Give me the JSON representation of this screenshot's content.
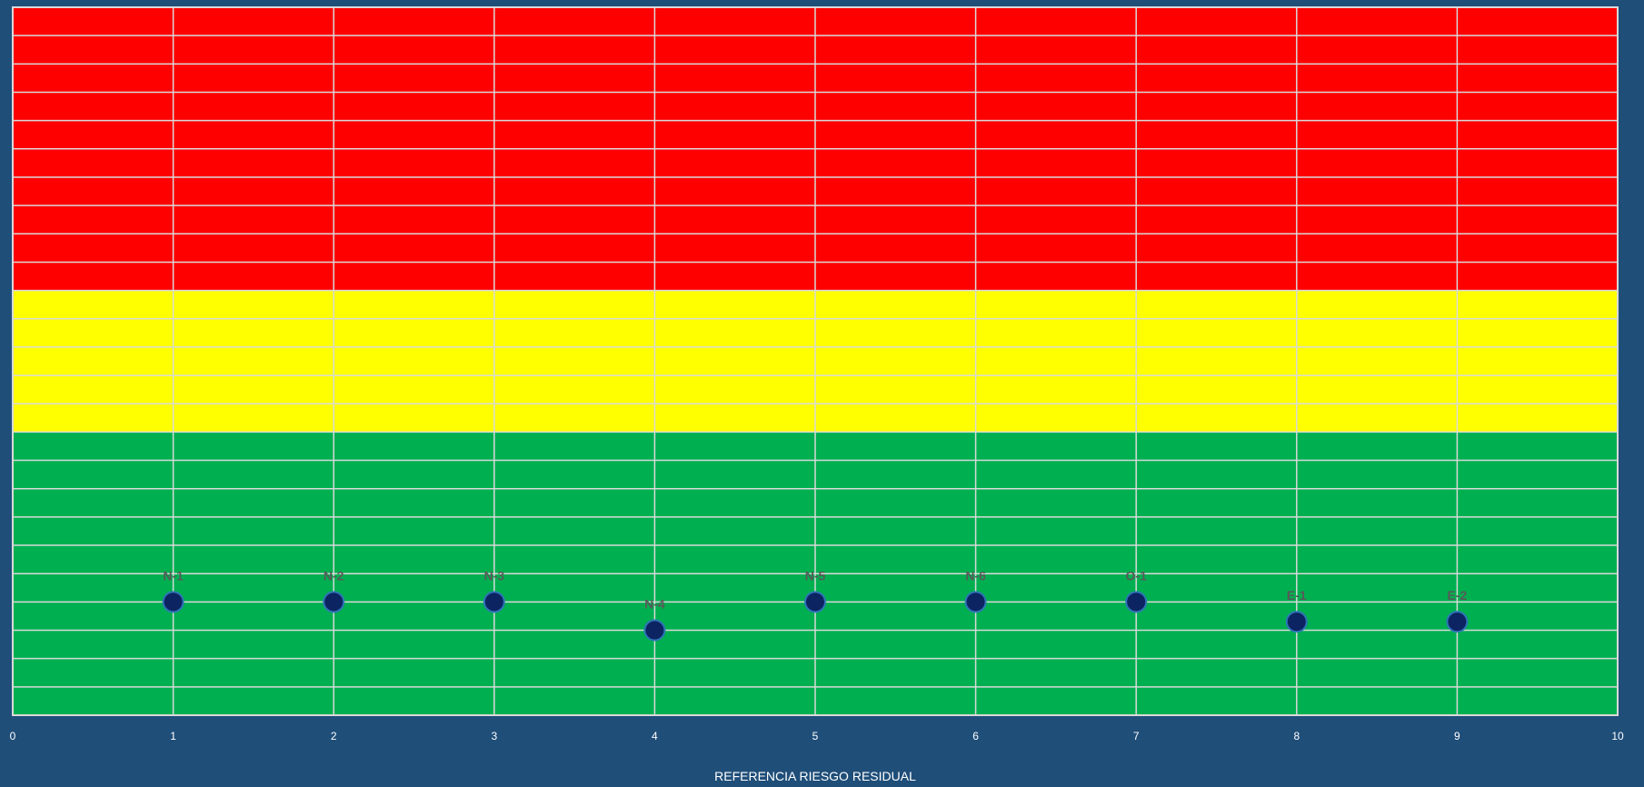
{
  "chart_data": {
    "type": "scatter",
    "title": "",
    "xlabel": "REFERENCIA RIESGO RESIDUAL",
    "ylabel": "",
    "xlim": [
      0,
      10
    ],
    "ylim": [
      0,
      25
    ],
    "x_ticks": [
      "0",
      "1",
      "2",
      "3",
      "4",
      "5",
      "6",
      "7",
      "8",
      "9",
      "10"
    ],
    "y_grid_step": 1,
    "grid": true,
    "bands": [
      {
        "name": "green",
        "from": 0,
        "to": 10,
        "color": "#00b050"
      },
      {
        "name": "yellow",
        "from": 10,
        "to": 15,
        "color": "#ffff00"
      },
      {
        "name": "red",
        "from": 15,
        "to": 25,
        "color": "#ff0000"
      }
    ],
    "marker_color": "#0c2461",
    "points": [
      {
        "label": "N-1",
        "x": 1,
        "y": 4
      },
      {
        "label": "N-2",
        "x": 2,
        "y": 4
      },
      {
        "label": "N-3",
        "x": 3,
        "y": 4
      },
      {
        "label": "N-4",
        "x": 4,
        "y": 3
      },
      {
        "label": "N-5",
        "x": 5,
        "y": 4
      },
      {
        "label": "N-6",
        "x": 6,
        "y": 4
      },
      {
        "label": "O-1",
        "x": 7,
        "y": 4
      },
      {
        "label": "E-1",
        "x": 8,
        "y": 3.3
      },
      {
        "label": "E-2",
        "x": 9,
        "y": 3.3
      }
    ]
  }
}
